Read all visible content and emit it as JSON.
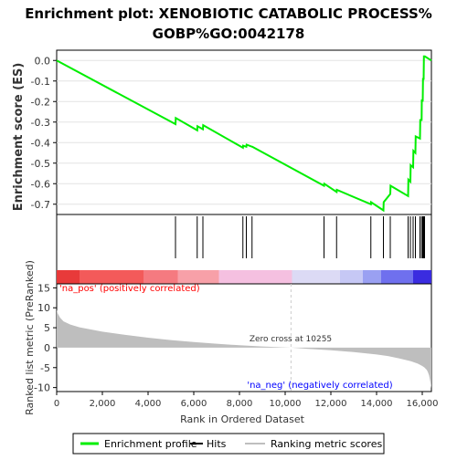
{
  "chart_data": {
    "type": "line",
    "title_line1": "Enrichment plot: XENOBIOTIC CATABOLIC PROCESS%",
    "title_line2": "GOBP%GO:0042178",
    "es_panel": {
      "ylabel": "Enrichment score (ES)",
      "ylim": [
        -0.75,
        0.05
      ],
      "yticks": [
        0.0,
        -0.1,
        -0.2,
        -0.3,
        -0.4,
        -0.5,
        -0.6,
        -0.7
      ],
      "ytick_labels": [
        "0.0",
        "-0.1",
        "-0.2",
        "-0.3",
        "-0.4",
        "-0.5",
        "-0.6",
        "-0.7"
      ],
      "line_color": "#00ee00",
      "x": [
        0,
        5200,
        5210,
        6150,
        6160,
        6400,
        6410,
        8150,
        8160,
        8300,
        8310,
        8550,
        8560,
        11700,
        11710,
        12250,
        12260,
        13750,
        13760,
        14300,
        14310,
        14600,
        14610,
        15380,
        15390,
        15480,
        15490,
        15600,
        15610,
        15700,
        15710,
        15900,
        15910,
        15970,
        15980,
        16020,
        16030,
        16060,
        16070,
        16100,
        16110,
        16400
      ],
      "y": [
        0.0,
        -0.31,
        -0.28,
        -0.34,
        -0.32,
        -0.335,
        -0.315,
        -0.425,
        -0.415,
        -0.42,
        -0.41,
        -0.42,
        -0.42,
        -0.61,
        -0.6,
        -0.64,
        -0.63,
        -0.7,
        -0.69,
        -0.73,
        -0.69,
        -0.65,
        -0.61,
        -0.66,
        -0.58,
        -0.59,
        -0.51,
        -0.52,
        -0.44,
        -0.45,
        -0.37,
        -0.38,
        -0.29,
        -0.29,
        -0.19,
        -0.2,
        -0.09,
        -0.09,
        0.02,
        0.02,
        0.02,
        0.0
      ]
    },
    "hits": {
      "positions": [
        5200,
        6150,
        6400,
        8150,
        8300,
        8550,
        11700,
        12250,
        13750,
        14300,
        14600,
        15380,
        15480,
        15600,
        15700,
        15900,
        15970,
        16020,
        16060,
        16100
      ]
    },
    "ranked_panel": {
      "ylabel": "Ranked list metric (PreRanked)",
      "ylim": [
        -11,
        16
      ],
      "yticks": [
        15,
        10,
        5,
        0,
        -5,
        -10
      ],
      "ytick_labels": [
        "15",
        "10",
        "5",
        "0",
        "-5",
        "-10"
      ],
      "pos_label": "'na_pos' (positively correlated)",
      "neg_label": "'na_neg' (negatively correlated)",
      "zero_cross_label": "Zero cross at 10255",
      "zero_cross": 10255,
      "pos_color": "#ff0000",
      "neg_color": "#0000ff",
      "fill_color": "#bebebe",
      "profile_x": [
        0,
        50,
        150,
        300,
        600,
        1000,
        2000,
        3000,
        4000,
        5000,
        6000,
        7000,
        8000,
        9000,
        10255,
        11000,
        12000,
        13000,
        14000,
        14500,
        15000,
        15500,
        15800,
        16000,
        16100,
        16200,
        16250,
        16300,
        16350,
        16400
      ],
      "profile_y": [
        9.5,
        8.5,
        7.5,
        6.6,
        5.8,
        5.1,
        4.0,
        3.2,
        2.5,
        1.9,
        1.4,
        1.0,
        0.6,
        0.3,
        0.0,
        -0.3,
        -0.65,
        -1.1,
        -1.7,
        -2.1,
        -2.7,
        -3.4,
        -4.0,
        -4.6,
        -5.0,
        -5.6,
        -6.2,
        -7.0,
        -8.5,
        -10.2
      ]
    },
    "colorbar": {
      "segments": [
        {
          "from": 0,
          "to": 1000,
          "color": "#e83a3a"
        },
        {
          "from": 1000,
          "to": 3800,
          "color": "#f35a5a"
        },
        {
          "from": 3800,
          "to": 5300,
          "color": "#f57a80"
        },
        {
          "from": 5300,
          "to": 7100,
          "color": "#f7a0a8"
        },
        {
          "from": 7100,
          "to": 10300,
          "color": "#f5c0e0"
        },
        {
          "from": 10300,
          "to": 12400,
          "color": "#dcdaf5"
        },
        {
          "from": 12400,
          "to": 13400,
          "color": "#c6c8f5"
        },
        {
          "from": 13400,
          "to": 14200,
          "color": "#9aa0f2"
        },
        {
          "from": 14200,
          "to": 15600,
          "color": "#6f70ee"
        },
        {
          "from": 15600,
          "to": 16400,
          "color": "#3a2ce0"
        }
      ]
    },
    "x_axis": {
      "label": "Rank in Ordered Dataset",
      "xlim": [
        0,
        16400
      ],
      "ticks": [
        0,
        2000,
        4000,
        6000,
        8000,
        10000,
        12000,
        14000,
        16000
      ],
      "tick_labels": [
        "0",
        "2,000",
        "4,000",
        "6,000",
        "8,000",
        "10,000",
        "12,000",
        "14,000",
        "16,000"
      ]
    },
    "legend": {
      "placement": "bottom",
      "items": [
        {
          "label": "Enrichment profile",
          "color": "#00ee00"
        },
        {
          "label": "Hits",
          "color": "#000000"
        },
        {
          "label": "Ranking metric scores",
          "color": "#bebebe"
        }
      ]
    }
  }
}
